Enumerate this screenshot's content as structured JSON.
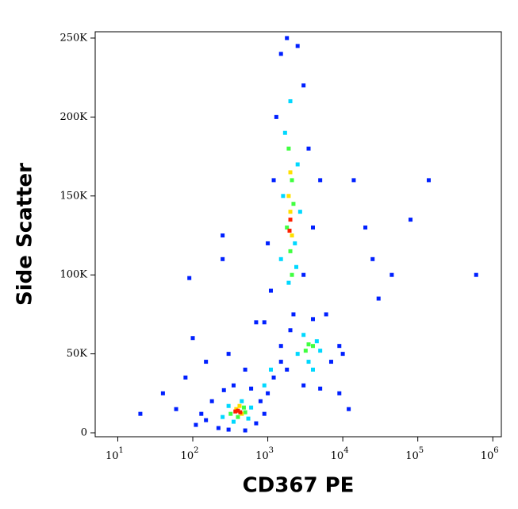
{
  "chart_data": {
    "type": "scatter",
    "x_label": "CD367 PE",
    "y_label": "Side Scatter",
    "xscale": "log",
    "xlim": [
      5,
      1300000
    ],
    "xticks": [
      {
        "value": 10,
        "label": "10",
        "exponent": "1"
      },
      {
        "value": 100,
        "label": "10",
        "exponent": "2"
      },
      {
        "value": 1000,
        "label": "10",
        "exponent": "3"
      },
      {
        "value": 10000,
        "label": "10",
        "exponent": "4"
      },
      {
        "value": 100000,
        "label": "10",
        "exponent": "5"
      },
      {
        "value": 1000000,
        "label": "10",
        "exponent": "6"
      }
    ],
    "ylim": [
      -2500,
      254000
    ],
    "yticks": [
      0,
      {
        "value": 50000,
        "label": "50K"
      },
      {
        "value": 100000,
        "label": "100K"
      },
      {
        "value": 150000,
        "label": "150K"
      },
      {
        "value": 200000,
        "label": "200K"
      },
      {
        "value": 250000,
        "label": "250K"
      }
    ],
    "series": [
      {
        "color": "#0020ff",
        "x": [
          150,
          180,
          220,
          260,
          300,
          700,
          800,
          600,
          130,
          900,
          350,
          500,
          1000,
          110,
          60,
          80,
          100,
          150,
          300,
          500,
          700,
          90,
          250,
          40,
          20,
          1200,
          1500,
          1100,
          1300,
          1200,
          3500,
          3000,
          1500,
          2500,
          1000,
          4000,
          900,
          3000,
          5000,
          1800,
          2200,
          1800,
          2000,
          7000,
          9000,
          6000,
          3000,
          10000,
          4000,
          1500,
          5000,
          14000,
          9000,
          25000,
          20000,
          45000,
          80000,
          600000,
          140000,
          30000,
          250,
          12000
        ],
        "values": [
          8000,
          20000,
          3000,
          27000,
          2000,
          6000,
          20000,
          28000,
          12000,
          12000,
          30000,
          1500,
          25000,
          5000,
          15000,
          35000,
          60000,
          45000,
          50000,
          40000,
          70000,
          98000,
          110000,
          25000,
          12000,
          35000,
          45000,
          90000,
          200000,
          160000,
          180000,
          220000,
          240000,
          245000,
          120000,
          130000,
          70000,
          100000,
          160000,
          250000,
          75000,
          40000,
          65000,
          45000,
          55000,
          75000,
          30000,
          50000,
          72000,
          55000,
          28000,
          160000,
          25000,
          110000,
          130000,
          100000,
          135000,
          100000,
          160000,
          85000,
          125000,
          15000
        ]
      },
      {
        "color": "#00d8ff",
        "x": [
          250,
          450,
          550,
          300,
          600,
          350,
          1500,
          2500,
          1700,
          2300,
          1600,
          2700,
          2000,
          1900,
          2400,
          2500,
          4500,
          3500,
          5000,
          3000,
          4000,
          900,
          1100
        ],
        "values": [
          10000,
          20000,
          9000,
          17000,
          16000,
          7000,
          110000,
          170000,
          190000,
          120000,
          150000,
          140000,
          210000,
          95000,
          105000,
          50000,
          58000,
          45000,
          52000,
          62000,
          40000,
          30000,
          40000
        ]
      },
      {
        "color": "#40ff40",
        "x": [
          320,
          480,
          400,
          500,
          1800,
          2100,
          2000,
          2200,
          1900,
          2100,
          3500,
          3200,
          4000
        ],
        "values": [
          12000,
          16000,
          10000,
          13000,
          130000,
          160000,
          115000,
          145000,
          180000,
          100000,
          56000,
          52000,
          55000
        ]
      },
      {
        "color": "#ffe000",
        "x": [
          380,
          450,
          420,
          2000,
          1900,
          2100,
          2000
        ],
        "values": [
          15000,
          12000,
          17000,
          140000,
          150000,
          125000,
          165000
        ]
      },
      {
        "color": "#ff2000",
        "x": [
          400,
          430,
          370,
          2000,
          1950
        ],
        "values": [
          14000,
          13000,
          13500,
          135000,
          128000
        ]
      }
    ]
  }
}
